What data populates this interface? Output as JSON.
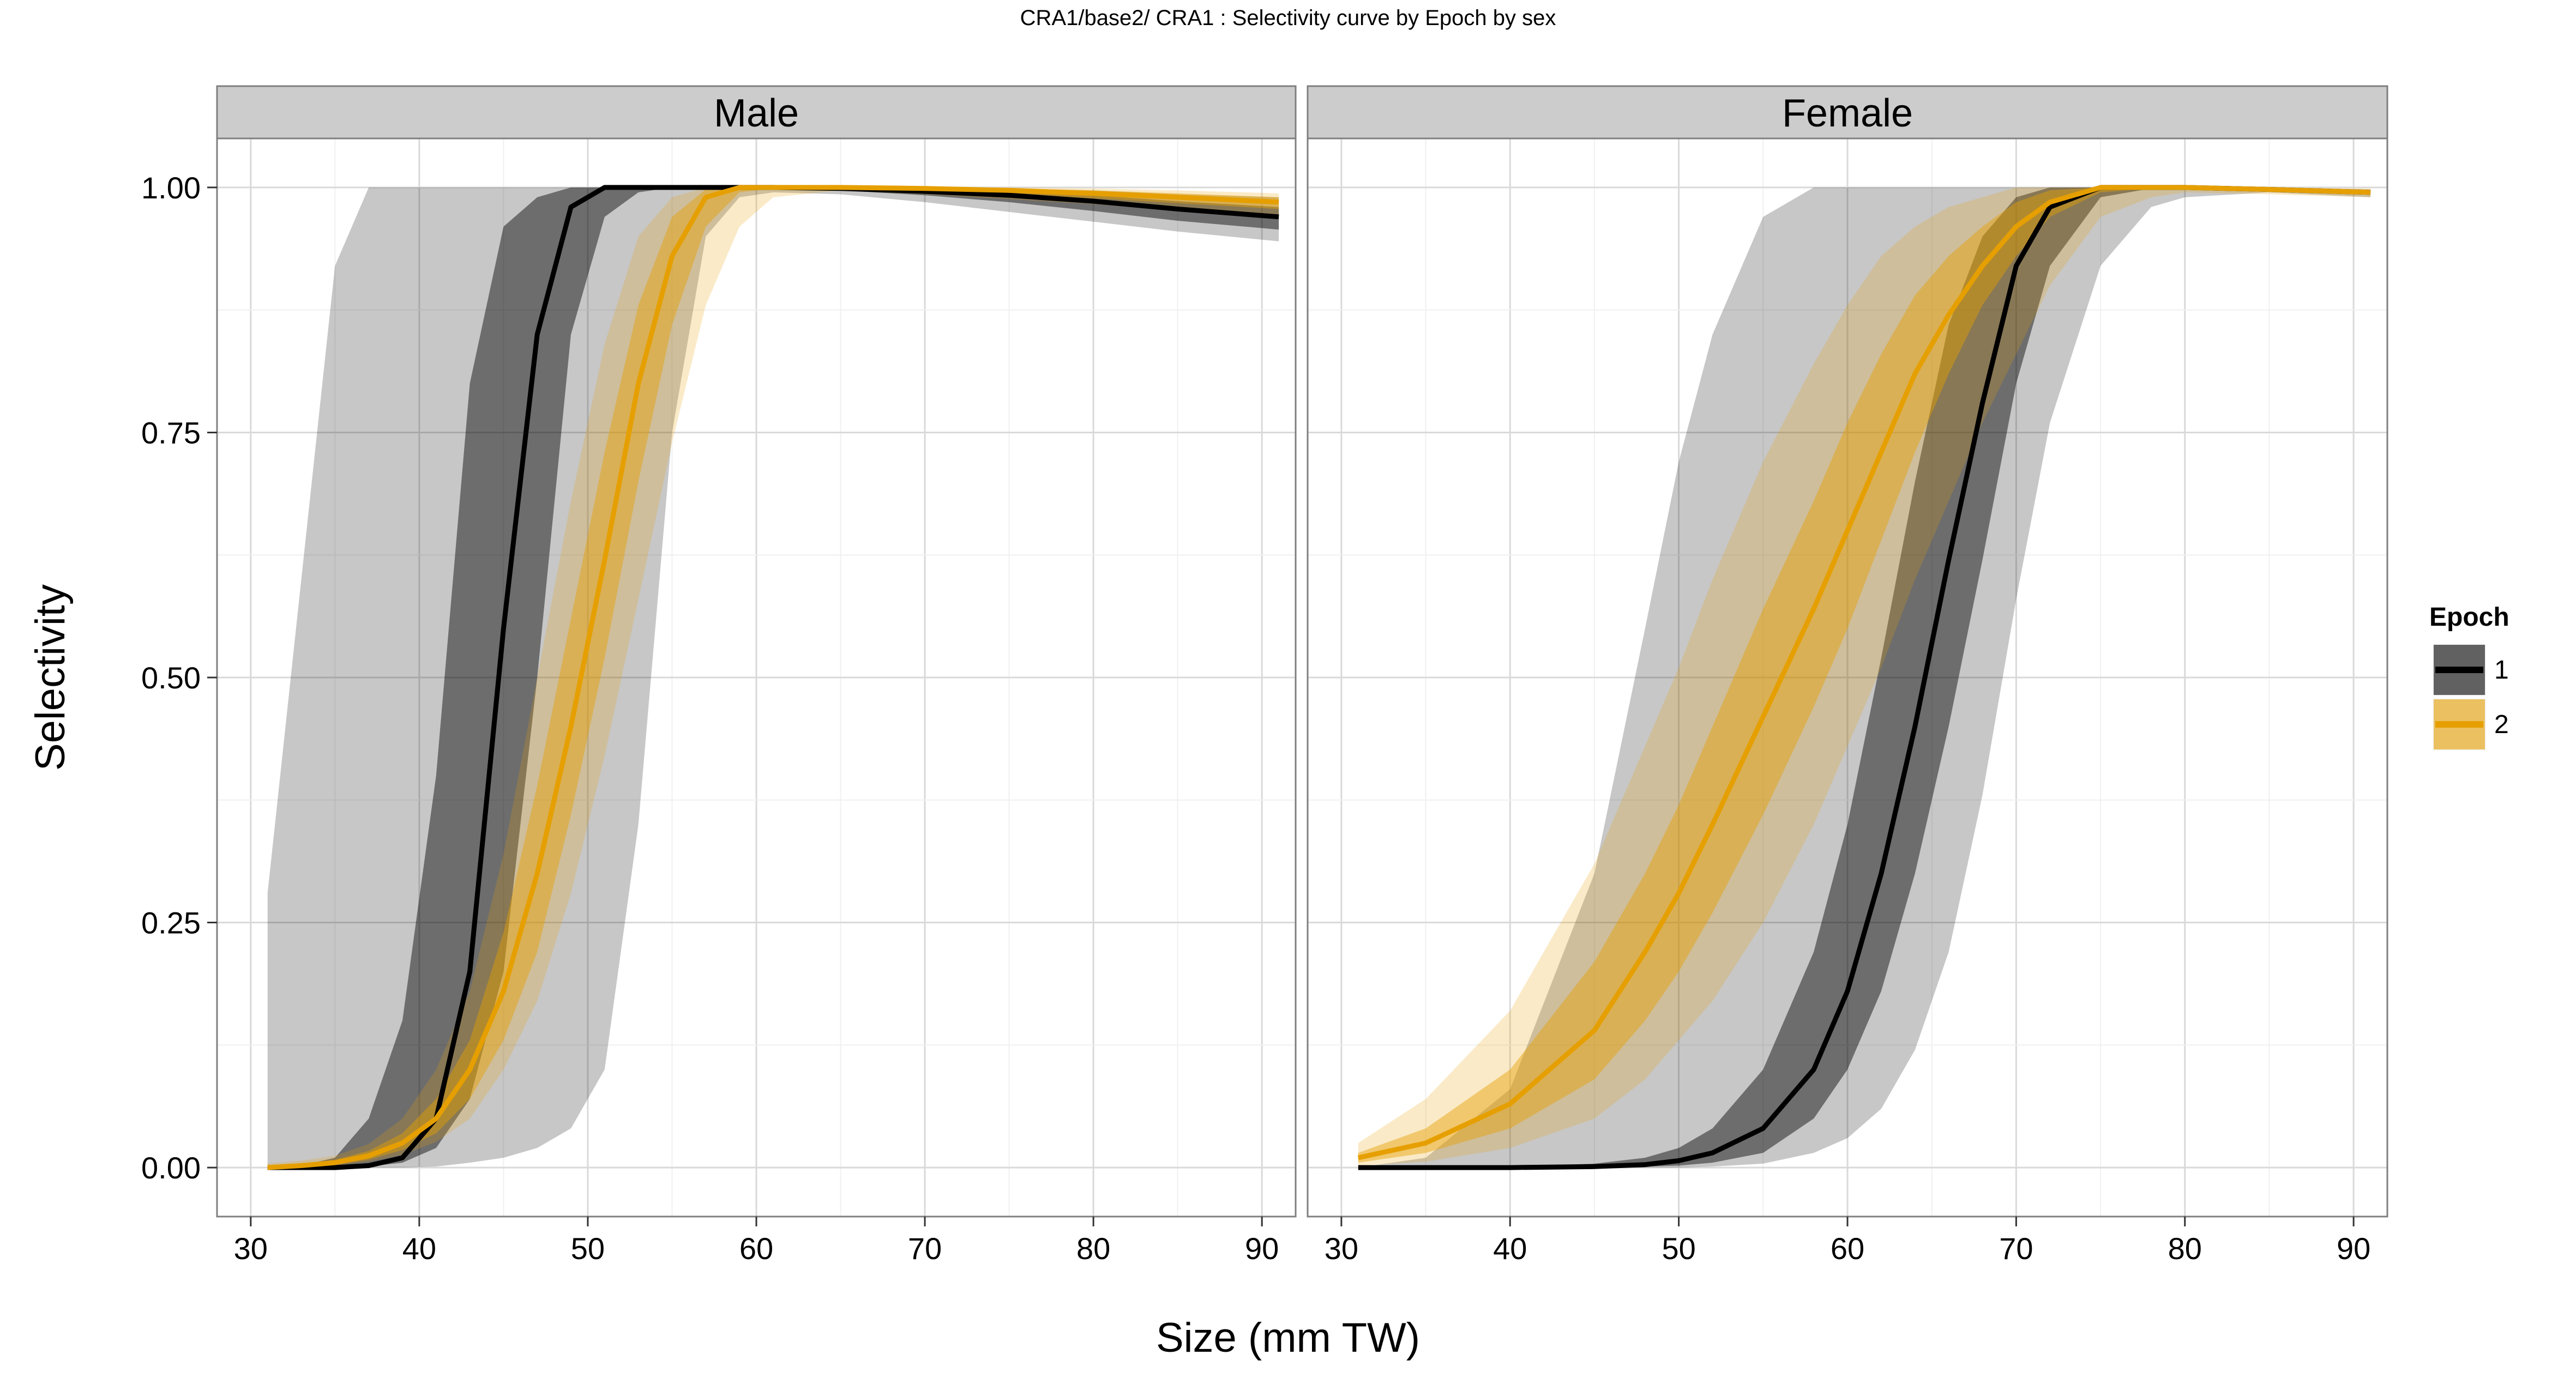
{
  "chart_data": {
    "type": "area",
    "title": "CRA1/base2/   CRA1 : Selectivity curve by Epoch by sex",
    "xlabel": "Size (mm TW)",
    "ylabel": "Selectivity",
    "xlim": [
      28,
      92
    ],
    "ylim": [
      -0.05,
      1.05
    ],
    "x_ticks": [
      "30",
      "40",
      "50",
      "60",
      "70",
      "80",
      "90"
    ],
    "x_tick_values": [
      30,
      40,
      50,
      60,
      70,
      80,
      90
    ],
    "y_ticks": [
      "0.00",
      "0.25",
      "0.50",
      "0.75",
      "1.00"
    ],
    "y_tick_values": [
      0,
      0.25,
      0.5,
      0.75,
      1
    ],
    "grid": true,
    "legend": {
      "title": "Epoch",
      "position": "right",
      "entries": [
        "1",
        "2"
      ]
    },
    "colors": {
      "epoch1": "#000000",
      "epoch2": "#E69F00"
    },
    "panels": [
      {
        "label": "Male",
        "x": [
          31,
          33,
          35,
          37,
          39,
          41,
          43,
          45,
          47,
          49,
          51,
          53,
          55,
          57,
          59,
          61,
          65,
          70,
          75,
          80,
          85,
          91
        ],
        "series": [
          {
            "name": "1",
            "median": [
              0,
              0,
              0,
              0.002,
              0.01,
              0.05,
              0.2,
              0.55,
              0.85,
              0.98,
              1.0,
              1.0,
              1.0,
              1.0,
              1.0,
              1.0,
              0.999,
              0.996,
              0.992,
              0.986,
              0.978,
              0.97
            ],
            "inner_lo": [
              0,
              0,
              0,
              0.001,
              0.005,
              0.02,
              0.07,
              0.2,
              0.5,
              0.85,
              0.97,
              0.995,
              1.0,
              1.0,
              1.0,
              0.999,
              0.997,
              0.992,
              0.985,
              0.976,
              0.966,
              0.957
            ],
            "inner_hi": [
              0,
              0.002,
              0.01,
              0.05,
              0.15,
              0.4,
              0.8,
              0.96,
              0.99,
              1.0,
              1.0,
              1.0,
              1.0,
              1.0,
              1.0,
              1.0,
              1.0,
              0.999,
              0.996,
              0.992,
              0.986,
              0.98
            ],
            "outer_lo": [
              0,
              0,
              0,
              0,
              0,
              0.001,
              0.005,
              0.01,
              0.02,
              0.04,
              0.1,
              0.35,
              0.75,
              0.95,
              0.99,
              0.995,
              0.993,
              0.985,
              0.975,
              0.965,
              0.955,
              0.945
            ],
            "outer_hi": [
              0.28,
              0.6,
              0.92,
              1.0,
              1.0,
              1.0,
              1.0,
              1.0,
              1.0,
              1.0,
              1.0,
              1.0,
              1.0,
              1.0,
              1.0,
              1.0,
              1.0,
              1.0,
              0.999,
              0.997,
              0.993,
              0.99
            ]
          },
          {
            "name": "2",
            "median": [
              0,
              0.002,
              0.005,
              0.012,
              0.025,
              0.05,
              0.1,
              0.18,
              0.3,
              0.45,
              0.62,
              0.8,
              0.93,
              0.99,
              1.0,
              1.0,
              1.0,
              0.999,
              0.997,
              0.994,
              0.99,
              0.985
            ],
            "inner_lo": [
              0,
              0.001,
              0.003,
              0.008,
              0.018,
              0.035,
              0.07,
              0.13,
              0.22,
              0.36,
              0.52,
              0.7,
              0.86,
              0.96,
              0.995,
              0.999,
              0.999,
              0.996,
              0.993,
              0.989,
              0.984,
              0.978
            ],
            "inner_hi": [
              0.002,
              0.004,
              0.008,
              0.017,
              0.035,
              0.07,
              0.13,
              0.24,
              0.39,
              0.56,
              0.73,
              0.88,
              0.97,
              0.998,
              1.0,
              1.0,
              1.0,
              1.0,
              0.999,
              0.997,
              0.994,
              0.99
            ],
            "outer_lo": [
              0,
              0,
              0.002,
              0.006,
              0.013,
              0.026,
              0.05,
              0.1,
              0.17,
              0.28,
              0.42,
              0.58,
              0.74,
              0.88,
              0.96,
              0.99,
              0.997,
              0.993,
              0.988,
              0.983,
              0.977,
              0.97
            ],
            "outer_hi": [
              0.004,
              0.007,
              0.012,
              0.024,
              0.05,
              0.1,
              0.18,
              0.32,
              0.5,
              0.68,
              0.84,
              0.95,
              0.99,
              1.0,
              1.0,
              1.0,
              1.0,
              1.0,
              1.0,
              0.999,
              0.997,
              0.994
            ]
          }
        ]
      },
      {
        "label": "Female",
        "x": [
          31,
          35,
          40,
          45,
          48,
          50,
          52,
          55,
          58,
          60,
          62,
          64,
          66,
          68,
          70,
          72,
          75,
          78,
          80,
          85,
          91
        ],
        "series": [
          {
            "name": "1",
            "median": [
              0,
              0,
              0,
              0.001,
              0.003,
              0.007,
              0.015,
              0.04,
              0.1,
              0.18,
              0.3,
              0.45,
              0.62,
              0.78,
              0.92,
              0.98,
              1.0,
              1.0,
              1.0,
              0.998,
              0.995
            ],
            "inner_lo": [
              0,
              0,
              0,
              0,
              0.001,
              0.002,
              0.005,
              0.015,
              0.05,
              0.1,
              0.18,
              0.3,
              0.45,
              0.62,
              0.8,
              0.92,
              0.99,
              0.999,
              0.999,
              0.997,
              0.993
            ],
            "inner_hi": [
              0,
              0,
              0.001,
              0.004,
              0.01,
              0.02,
              0.04,
              0.1,
              0.22,
              0.35,
              0.52,
              0.7,
              0.86,
              0.95,
              0.99,
              1.0,
              1.0,
              1.0,
              1.0,
              0.999,
              0.997
            ],
            "outer_lo": [
              0,
              0,
              0,
              0,
              0,
              0,
              0.001,
              0.004,
              0.015,
              0.03,
              0.06,
              0.12,
              0.22,
              0.38,
              0.58,
              0.76,
              0.92,
              0.98,
              0.99,
              0.995,
              0.99
            ],
            "outer_hi": [
              0,
              0.01,
              0.08,
              0.3,
              0.55,
              0.72,
              0.85,
              0.97,
              1.0,
              1.0,
              1.0,
              1.0,
              1.0,
              1.0,
              1.0,
              1.0,
              1.0,
              1.0,
              1.0,
              1.0,
              0.998
            ]
          },
          {
            "name": "2",
            "median": [
              0.01,
              0.025,
              0.065,
              0.14,
              0.22,
              0.28,
              0.35,
              0.46,
              0.57,
              0.65,
              0.73,
              0.81,
              0.87,
              0.92,
              0.96,
              0.985,
              1.0,
              1.0,
              1.0,
              0.998,
              0.995
            ],
            "inner_lo": [
              0.005,
              0.015,
              0.04,
              0.09,
              0.15,
              0.2,
              0.26,
              0.36,
              0.47,
              0.55,
              0.64,
              0.73,
              0.81,
              0.88,
              0.93,
              0.97,
              0.995,
              0.999,
              0.999,
              0.996,
              0.993
            ],
            "inner_hi": [
              0.015,
              0.04,
              0.1,
              0.21,
              0.3,
              0.37,
              0.45,
              0.57,
              0.68,
              0.76,
              0.83,
              0.89,
              0.93,
              0.96,
              0.985,
              0.997,
              1.0,
              1.0,
              1.0,
              0.999,
              0.997
            ],
            "outer_lo": [
              0.002,
              0.006,
              0.02,
              0.05,
              0.09,
              0.13,
              0.17,
              0.25,
              0.35,
              0.43,
              0.51,
              0.6,
              0.68,
              0.76,
              0.83,
              0.9,
              0.97,
              0.99,
              0.995,
              0.993,
              0.99
            ],
            "outer_hi": [
              0.025,
              0.07,
              0.16,
              0.31,
              0.43,
              0.51,
              0.6,
              0.72,
              0.82,
              0.88,
              0.93,
              0.96,
              0.98,
              0.99,
              1.0,
              1.0,
              1.0,
              1.0,
              1.0,
              1.0,
              0.999
            ]
          }
        ]
      }
    ]
  }
}
